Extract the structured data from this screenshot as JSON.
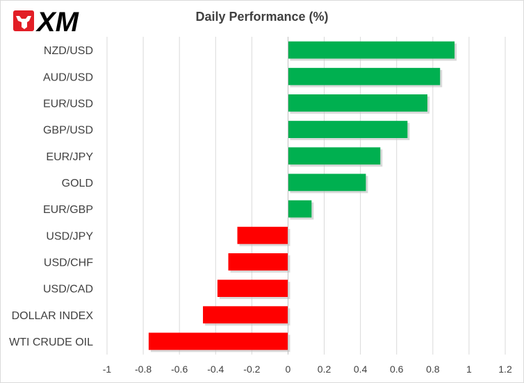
{
  "logo": {
    "text": "XM",
    "brand_color": "#e21e26",
    "ink_color": "#000000"
  },
  "chart_data": {
    "type": "bar",
    "orientation": "horizontal",
    "title": "Daily Performance (%)",
    "xlabel": "",
    "ylabel": "",
    "categories": [
      "NZD/USD",
      "AUD/USD",
      "EUR/USD",
      "GBP/USD",
      "EUR/JPY",
      "GOLD",
      "EUR/GBP",
      "USD/JPY",
      "USD/CHF",
      "USD/CAD",
      "DOLLAR INDEX",
      "WTI CRUDE OIL"
    ],
    "values": [
      0.92,
      0.84,
      0.77,
      0.66,
      0.51,
      0.43,
      0.13,
      -0.28,
      -0.33,
      -0.39,
      -0.47,
      -0.77
    ],
    "xlim": [
      -1,
      1.2
    ],
    "ticks": [
      -1,
      -0.8,
      -0.6,
      -0.4,
      -0.2,
      0,
      0.2,
      0.4,
      0.6,
      0.8,
      1,
      1.2
    ],
    "tick_labels": [
      "-1",
      "-0.8",
      "-0.6",
      "-0.4",
      "-0.2",
      "0",
      "0.2",
      "0.4",
      "0.6",
      "0.8",
      "1",
      "1.2"
    ],
    "grid": "vertical",
    "legend": "none",
    "colors": {
      "positive": "#00b050",
      "negative": "#ff0000",
      "grid": "#d9d9d9"
    }
  }
}
